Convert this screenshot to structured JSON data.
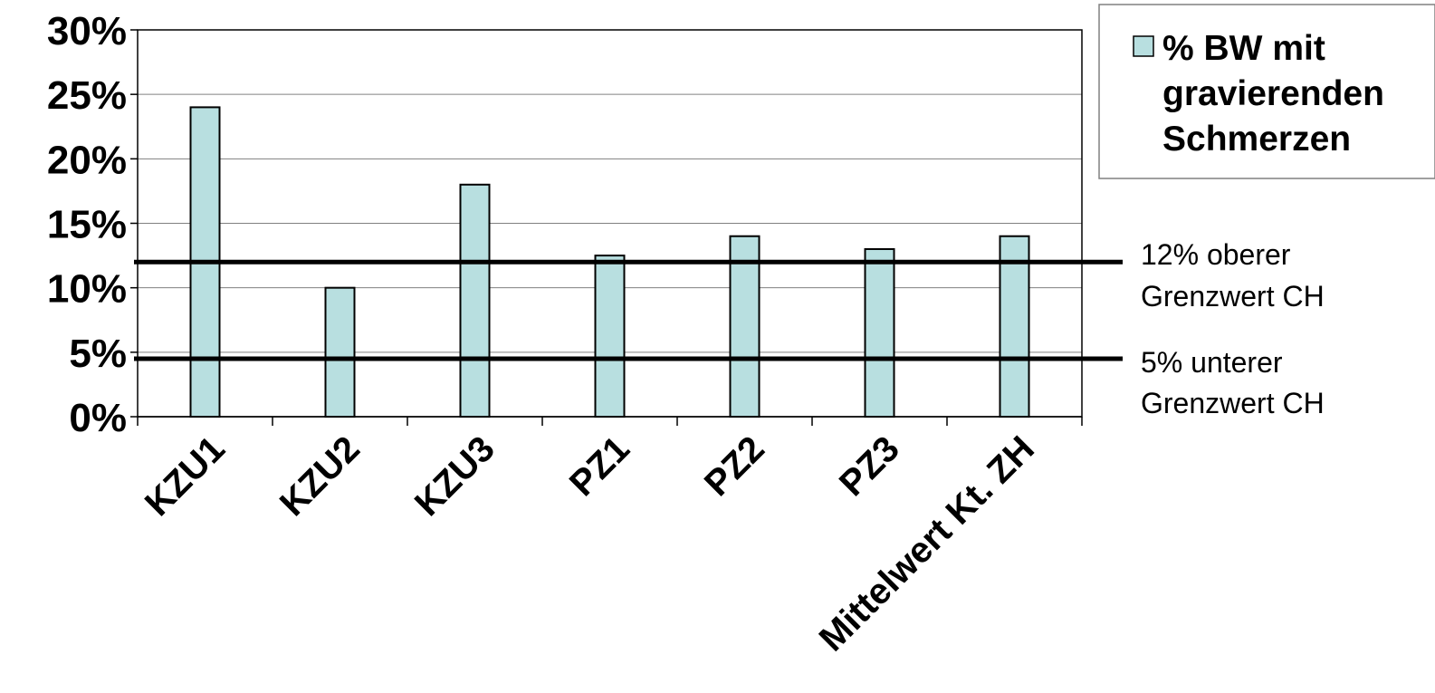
{
  "chart_data": {
    "type": "bar",
    "categories": [
      "KZU1",
      "KZU2",
      "KZU3",
      "PZ1",
      "PZ2",
      "PZ3",
      "Mittelwert Kt. ZH"
    ],
    "series": [
      {
        "name": "% BW mit gravierenden Schmerzen",
        "values": [
          24,
          10,
          18,
          12.5,
          14,
          13,
          14
        ]
      }
    ],
    "ylim": [
      0,
      30
    ],
    "yticks": [
      "0%",
      "5%",
      "10%",
      "15%",
      "20%",
      "25%",
      "30%"
    ],
    "ytick_values": [
      0,
      5,
      10,
      15,
      20,
      25,
      30
    ],
    "grid": true,
    "legend": {
      "position": "top-right",
      "lines": [
        "% BW mit",
        "gravierenden",
        "Schmerzen"
      ]
    },
    "reference_lines": [
      {
        "value": 12,
        "label_lines": [
          "12% oberer",
          "Grenzwert CH"
        ]
      },
      {
        "value": 4.5,
        "label_lines": [
          "5% unterer",
          "Grenzwert CH"
        ]
      }
    ],
    "colors": {
      "bar": "#b8dfe0",
      "bar_stroke": "#000000",
      "grid": "#808080",
      "reference": "#000000"
    }
  }
}
